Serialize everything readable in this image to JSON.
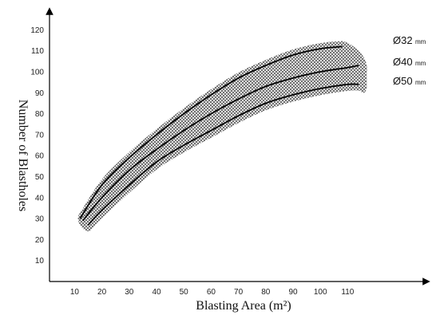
{
  "chart_data": {
    "type": "line",
    "xlabel": "Blasting Area (m²)",
    "ylabel": "Number of Blastholes",
    "xticks": [
      10,
      20,
      30,
      40,
      50,
      60,
      70,
      80,
      90,
      100,
      110
    ],
    "yticks": [
      10,
      20,
      30,
      40,
      50,
      60,
      70,
      80,
      90,
      100,
      110,
      120
    ],
    "xlim": [
      0,
      120
    ],
    "ylim": [
      0,
      125
    ],
    "grid": false,
    "band": "cross-hatched region enclosing all three curves",
    "series": [
      {
        "name": "Ø32㎜",
        "x": [
          12,
          20,
          30,
          40,
          50,
          60,
          70,
          80,
          90,
          100,
          108
        ],
        "y": [
          30,
          46,
          59,
          70,
          80,
          89,
          97,
          103,
          108,
          111,
          112
        ]
      },
      {
        "name": "Ø40㎜",
        "x": [
          13,
          20,
          30,
          40,
          50,
          60,
          70,
          80,
          90,
          100,
          110,
          114
        ],
        "y": [
          29,
          40,
          53,
          63,
          72,
          80,
          87,
          93,
          97,
          100,
          102,
          103
        ]
      },
      {
        "name": "Ø50㎜",
        "x": [
          15,
          20,
          30,
          40,
          50,
          60,
          70,
          80,
          90,
          100,
          110,
          114
        ],
        "y": [
          27,
          34,
          46,
          57,
          65,
          72,
          79,
          85,
          89,
          92,
          94,
          94
        ]
      }
    ],
    "legend": {
      "placement": "right",
      "items": [
        {
          "symbol": "Ø",
          "value": "32",
          "unit": "mm"
        },
        {
          "symbol": "Ø",
          "value": "40",
          "unit": "mm"
        },
        {
          "symbol": "Ø",
          "value": "50",
          "unit": "mm"
        }
      ]
    }
  }
}
